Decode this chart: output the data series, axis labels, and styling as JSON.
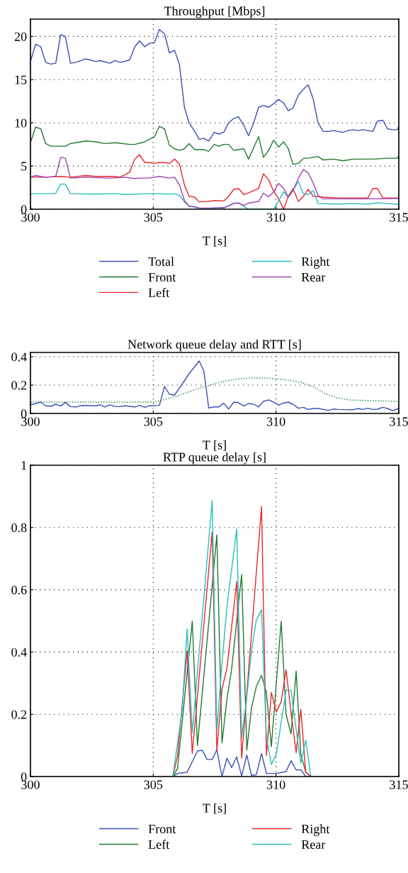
{
  "chart_data": [
    {
      "type": "line",
      "title": "Throughput [Mbps]",
      "xlabel": "T [s]",
      "xlim": [
        300,
        315
      ],
      "ylim": [
        0,
        22
      ],
      "xticks": [
        300,
        305,
        310,
        315
      ],
      "yticks": [
        0,
        5,
        10,
        15,
        20
      ],
      "grid": true,
      "legend": "bottom",
      "series": [
        {
          "name": "Total",
          "color": "#3a4fb0",
          "x": [
            300,
            300.21,
            300.42,
            300.62,
            300.83,
            301.03,
            301.23,
            301.42,
            301.63,
            301.85,
            302.24,
            302.66,
            302.84,
            303.24,
            303.45,
            303.64,
            303.85,
            304.04,
            304.25,
            304.44,
            304.66,
            304.84,
            305.05,
            305.25,
            305.46,
            305.66,
            305.87,
            306.07,
            306.27,
            306.46,
            306.69,
            306.87,
            307.06,
            307.26,
            307.48,
            307.67,
            307.87,
            308.07,
            308.28,
            308.47,
            308.69,
            308.88,
            309.09,
            309.29,
            309.49,
            309.7,
            309.9,
            310.11,
            310.31,
            310.5,
            310.69,
            310.91,
            311.12,
            311.31,
            311.52,
            311.71,
            311.92,
            312.13,
            312.34,
            312.53,
            312.72,
            312.94,
            313.13,
            313.34,
            313.54,
            313.74,
            313.94,
            314.13,
            314.35,
            314.54,
            314.74,
            314.94,
            315
          ],
          "values": [
            17.1,
            19.1,
            18.8,
            17.0,
            16.8,
            16.9,
            20.2,
            20.0,
            16.9,
            17.0,
            17.4,
            17.1,
            17.2,
            16.9,
            17.2,
            17.0,
            17.1,
            17.3,
            18.8,
            19.5,
            18.8,
            19.2,
            19.3,
            20.8,
            20.3,
            18.1,
            18.4,
            16.7,
            11.8,
            10.0,
            9.0,
            8.1,
            8.2,
            7.9,
            8.9,
            8.7,
            8.9,
            10.0,
            10.5,
            10.7,
            9.7,
            8.5,
            10.0,
            11.8,
            12.0,
            11.8,
            12.2,
            12.7,
            12.3,
            11.4,
            11.7,
            13.2,
            13.9,
            14.4,
            12.7,
            10.0,
            9.0,
            9.0,
            9.1,
            9.0,
            8.9,
            9.1,
            9.2,
            9.1,
            9.2,
            9.1,
            9.0,
            10.2,
            10.3,
            9.3,
            9.2,
            9.2,
            9.6
          ]
        },
        {
          "name": "Front",
          "color": "#1f7a2e",
          "x": [
            300,
            300.21,
            300.42,
            300.62,
            300.83,
            301.42,
            301.63,
            301.85,
            302.24,
            302.66,
            303.02,
            303.45,
            304.04,
            304.25,
            304.66,
            304.84,
            305.05,
            305.25,
            305.46,
            305.66,
            305.87,
            306.07,
            306.27,
            306.46,
            306.69,
            307.06,
            307.26,
            307.48,
            307.67,
            307.87,
            308.07,
            308.28,
            308.47,
            308.69,
            308.88,
            309.09,
            309.29,
            309.49,
            309.7,
            309.9,
            310.11,
            310.31,
            310.5,
            310.69,
            310.91,
            311.12,
            311.31,
            311.71,
            311.92,
            312.34,
            312.74,
            313.13,
            313.54,
            313.94,
            314.54,
            314.74,
            314.94,
            315
          ],
          "values": [
            7.7,
            9.5,
            9.3,
            7.6,
            7.3,
            7.3,
            7.6,
            7.7,
            7.9,
            7.8,
            7.6,
            7.7,
            7.5,
            7.5,
            7.8,
            8.1,
            8.4,
            9.6,
            9.3,
            7.4,
            7.0,
            6.8,
            7.0,
            7.6,
            6.9,
            6.9,
            6.7,
            7.5,
            7.3,
            7.5,
            7.5,
            6.8,
            6.9,
            7.0,
            5.8,
            7.1,
            8.4,
            6.0,
            6.8,
            8.0,
            7.2,
            7.8,
            7.0,
            5.2,
            5.3,
            5.9,
            5.9,
            6.1,
            5.7,
            5.8,
            5.6,
            5.8,
            5.8,
            5.8,
            5.9,
            5.9,
            5.9,
            6.2
          ]
        },
        {
          "name": "Left",
          "color": "#e8262a",
          "x": [
            300,
            300.62,
            301.23,
            301.63,
            302.24,
            302.66,
            303.45,
            303.64,
            303.85,
            304.04,
            304.25,
            304.44,
            304.66,
            304.84,
            305.05,
            305.25,
            305.46,
            305.66,
            305.87,
            306.07,
            306.27,
            306.46,
            306.69,
            306.87,
            307.26,
            307.48,
            307.87,
            308.07,
            308.28,
            308.47,
            308.69,
            308.88,
            309.29,
            309.49,
            309.7,
            309.9,
            310.11,
            310.31,
            310.5,
            310.69,
            310.91,
            311.12,
            311.31,
            311.52,
            311.92,
            312.53,
            313.13,
            313.74,
            313.94,
            314.13,
            314.35,
            315
          ],
          "values": [
            3.7,
            3.7,
            3.8,
            3.7,
            3.9,
            3.8,
            3.8,
            3.7,
            4.0,
            4.3,
            5.8,
            6.3,
            5.4,
            5.4,
            5.3,
            5.4,
            5.4,
            5.3,
            5.8,
            5.2,
            2.8,
            1.5,
            1.4,
            0.85,
            0.9,
            1.0,
            0.95,
            1.5,
            2.3,
            2.4,
            1.7,
            1.9,
            2.4,
            4.1,
            3.4,
            2.1,
            1.2,
            0,
            1.5,
            2.4,
            0.9,
            1.5,
            2.3,
            1.5,
            1.4,
            1.3,
            1.3,
            1.3,
            2.4,
            2.4,
            1.3,
            1.3
          ]
        },
        {
          "name": "Right",
          "color": "#2bbcc0",
          "x": [
            300,
            300.83,
            301.03,
            301.23,
            301.42,
            301.63,
            302.66,
            303.45,
            303.85,
            304.84,
            305.25,
            305.66,
            305.87,
            306.07,
            306.27,
            306.46,
            306.69,
            306.87,
            307.87,
            308.28,
            308.47,
            308.88,
            309.9,
            310.11,
            310.31,
            310.5,
            310.91,
            311.12,
            311.31,
            311.52,
            311.71,
            312.53,
            313.13,
            313.74,
            314.13,
            315
          ],
          "values": [
            1.8,
            1.8,
            1.85,
            2.9,
            2.9,
            1.8,
            1.75,
            1.8,
            1.7,
            1.8,
            1.8,
            1.75,
            1.8,
            1.6,
            0.85,
            0.35,
            0.25,
            0.05,
            0.12,
            0.65,
            0.75,
            0,
            0,
            1.0,
            2.0,
            1.4,
            3.2,
            1.75,
            1.7,
            2.15,
            0.65,
            0.6,
            0.65,
            0.6,
            0.75,
            0.55
          ]
        },
        {
          "name": "Rear",
          "color": "#a040b0",
          "x": [
            300,
            300.21,
            300.62,
            301.03,
            301.23,
            301.42,
            301.63,
            302.24,
            303.24,
            303.85,
            304.25,
            304.44,
            304.84,
            305.25,
            305.66,
            305.87,
            306.07,
            306.27,
            306.46,
            306.69,
            306.87,
            307.26,
            307.87,
            308.07,
            308.28,
            308.47,
            308.69,
            308.88,
            309.29,
            309.49,
            309.7,
            309.9,
            310.11,
            310.31,
            310.5,
            310.69,
            310.91,
            311.12,
            311.31,
            311.52,
            311.71,
            311.92,
            313.13,
            314.13,
            315
          ],
          "values": [
            3.7,
            3.9,
            3.7,
            3.8,
            6.0,
            5.9,
            3.6,
            3.7,
            3.6,
            3.7,
            3.55,
            3.6,
            3.6,
            3.8,
            3.6,
            3.7,
            2.8,
            1.0,
            0.35,
            0.3,
            0.15,
            0.12,
            0.18,
            0.4,
            0.7,
            0.7,
            0.45,
            0.7,
            0.9,
            1.85,
            1.45,
            2.0,
            3.0,
            2.4,
            1.4,
            2.1,
            3.6,
            4.6,
            4.2,
            3.0,
            1.6,
            1.2,
            1.2,
            1.2,
            1.25
          ]
        }
      ]
    },
    {
      "type": "line",
      "title": "Network queue delay and RTT [s]",
      "xlabel": "T [s]",
      "xlim": [
        300,
        315
      ],
      "ylim": [
        0,
        0.43
      ],
      "xticks": [
        300,
        305,
        310,
        315
      ],
      "yticks": [
        0,
        0.2,
        0.4
      ],
      "grid": true,
      "series": [
        {
          "color": "#3a4fb0",
          "x": [
            300,
            300.21,
            300.42,
            300.62,
            300.83,
            301.03,
            301.23,
            301.42,
            301.63,
            301.85,
            302.06,
            302.66,
            302.84,
            303.02,
            303.24,
            303.45,
            303.64,
            303.85,
            304.25,
            304.44,
            304.66,
            304.84,
            305.25,
            305.46,
            305.66,
            305.87,
            306.27,
            306.46,
            306.69,
            306.87,
            307.06,
            307.26,
            307.48,
            307.67,
            307.87,
            308.07,
            308.28,
            308.47,
            308.69,
            308.88,
            309.09,
            309.29,
            309.49,
            309.7,
            309.9,
            310.11,
            310.31,
            310.5,
            310.69,
            310.91,
            311.12,
            311.31,
            311.52,
            311.71,
            312.13,
            312.34,
            312.53,
            313.13,
            313.34,
            313.54,
            313.74,
            313.94,
            314.13,
            314.35,
            314.54,
            314.74,
            315
          ],
          "values": [
            0.061,
            0.069,
            0.08,
            0.054,
            0.05,
            0.065,
            0.052,
            0.078,
            0.048,
            0.046,
            0.056,
            0.054,
            0.061,
            0.046,
            0.061,
            0.048,
            0.048,
            0.054,
            0.046,
            0.057,
            0.043,
            0.054,
            0.057,
            0.19,
            0.135,
            0.13,
            0.23,
            0.28,
            0.33,
            0.37,
            0.3,
            0.039,
            0.046,
            0.046,
            0.072,
            0.031,
            0.08,
            0.076,
            0.052,
            0.07,
            0.065,
            0.046,
            0.085,
            0.096,
            0.08,
            0.059,
            0.074,
            0.08,
            0.065,
            0.037,
            0.043,
            0.028,
            0.035,
            0.035,
            0.022,
            0.031,
            0.028,
            0.026,
            0.035,
            0.028,
            0.037,
            0.028,
            0.03,
            0.043,
            0.035,
            0.02,
            0.035
          ]
        },
        {
          "color": "#1f7a2e",
          "line_style": "dotted",
          "x": [
            300,
            305,
            305.5,
            306,
            306.5,
            307,
            307.5,
            308,
            308.5,
            309,
            309.5,
            310,
            310.5,
            311,
            311.5,
            312,
            312.5,
            313,
            314,
            315
          ],
          "values": [
            0.08,
            0.08,
            0.1,
            0.125,
            0.155,
            0.185,
            0.21,
            0.23,
            0.245,
            0.25,
            0.25,
            0.245,
            0.235,
            0.22,
            0.19,
            0.14,
            0.11,
            0.095,
            0.09,
            0.085
          ]
        }
      ]
    },
    {
      "type": "line",
      "title": "RTP queue delay [s]",
      "xlabel": "T [s]",
      "xlim": [
        300,
        315
      ],
      "ylim": [
        0,
        1
      ],
      "xticks": [
        300,
        305,
        310,
        315
      ],
      "yticks": [
        0,
        0.2,
        0.4,
        0.6,
        0.8,
        1
      ],
      "grid": true,
      "legend": "bottom",
      "series": [
        {
          "name": "Front",
          "color": "#3a4fb0",
          "x": [
            300,
            305.8,
            305.99,
            306.38,
            306.8,
            307.0,
            307.19,
            307.4,
            307.59,
            307.8,
            308.0,
            308.19,
            308.4,
            308.6,
            308.81,
            309.0,
            309.2,
            309.41,
            309.61,
            310.01,
            310.41,
            310.61,
            310.82,
            311.01,
            311.21,
            315
          ],
          "values": [
            0,
            0,
            0.01,
            0.014,
            0.082,
            0.085,
            0.055,
            0.055,
            0.086,
            0,
            0.059,
            0.029,
            0.063,
            0.002,
            0.069,
            0.004,
            0.006,
            0.074,
            0.01,
            0.01,
            0.016,
            0.051,
            0.021,
            0.022,
            0,
            0
          ]
        },
        {
          "name": "Left",
          "color": "#1f7a2e",
          "x": [
            300,
            305.8,
            305.99,
            306.59,
            306.8,
            307.59,
            307.8,
            308.0,
            308.19,
            308.6,
            308.81,
            309.0,
            309.2,
            309.41,
            309.61,
            309.81,
            310.21,
            310.41,
            310.61,
            310.82,
            311.01,
            311.21,
            311.42,
            315
          ],
          "values": [
            0,
            0,
            0.026,
            0.499,
            0.1,
            0.776,
            0.108,
            0.248,
            0.343,
            0.649,
            0.085,
            0.22,
            0.29,
            0.325,
            0.27,
            0.096,
            0.499,
            0.2,
            0.137,
            0.339,
            0.071,
            0.014,
            0,
            0
          ]
        },
        {
          "name": "Right",
          "color": "#e8262a",
          "x": [
            300,
            305.8,
            305.99,
            306.38,
            306.59,
            307.4,
            307.59,
            307.8,
            308.0,
            308.4,
            308.6,
            309.41,
            309.61,
            309.81,
            310.01,
            310.21,
            310.41,
            310.61,
            310.82,
            311.01,
            311.21,
            311.42,
            315
          ],
          "values": [
            0,
            0,
            0.067,
            0.404,
            0.074,
            0.786,
            0.084,
            0.281,
            0.347,
            0.626,
            0.059,
            0.867,
            0.067,
            0.27,
            0.207,
            0.24,
            0.343,
            0.207,
            0.077,
            0.216,
            0.014,
            0,
            0
          ]
        },
        {
          "name": "Rear",
          "color": "#2bbcc0",
          "x": [
            300,
            305.8,
            306.18,
            306.38,
            306.59,
            307.4,
            307.59,
            307.8,
            308.0,
            308.4,
            308.6,
            308.81,
            309.0,
            309.2,
            309.41,
            309.61,
            309.81,
            310.01,
            310.41,
            310.61,
            310.82,
            311.01,
            311.21,
            311.42,
            315
          ],
          "values": [
            0,
            0,
            0.215,
            0.474,
            0.141,
            0.887,
            0.15,
            0.363,
            0.544,
            0.795,
            0.125,
            0.256,
            0.404,
            0.503,
            0.536,
            0.125,
            0.039,
            0.071,
            0.277,
            0.277,
            0.15,
            0.043,
            0.117,
            0,
            0
          ]
        }
      ]
    }
  ]
}
